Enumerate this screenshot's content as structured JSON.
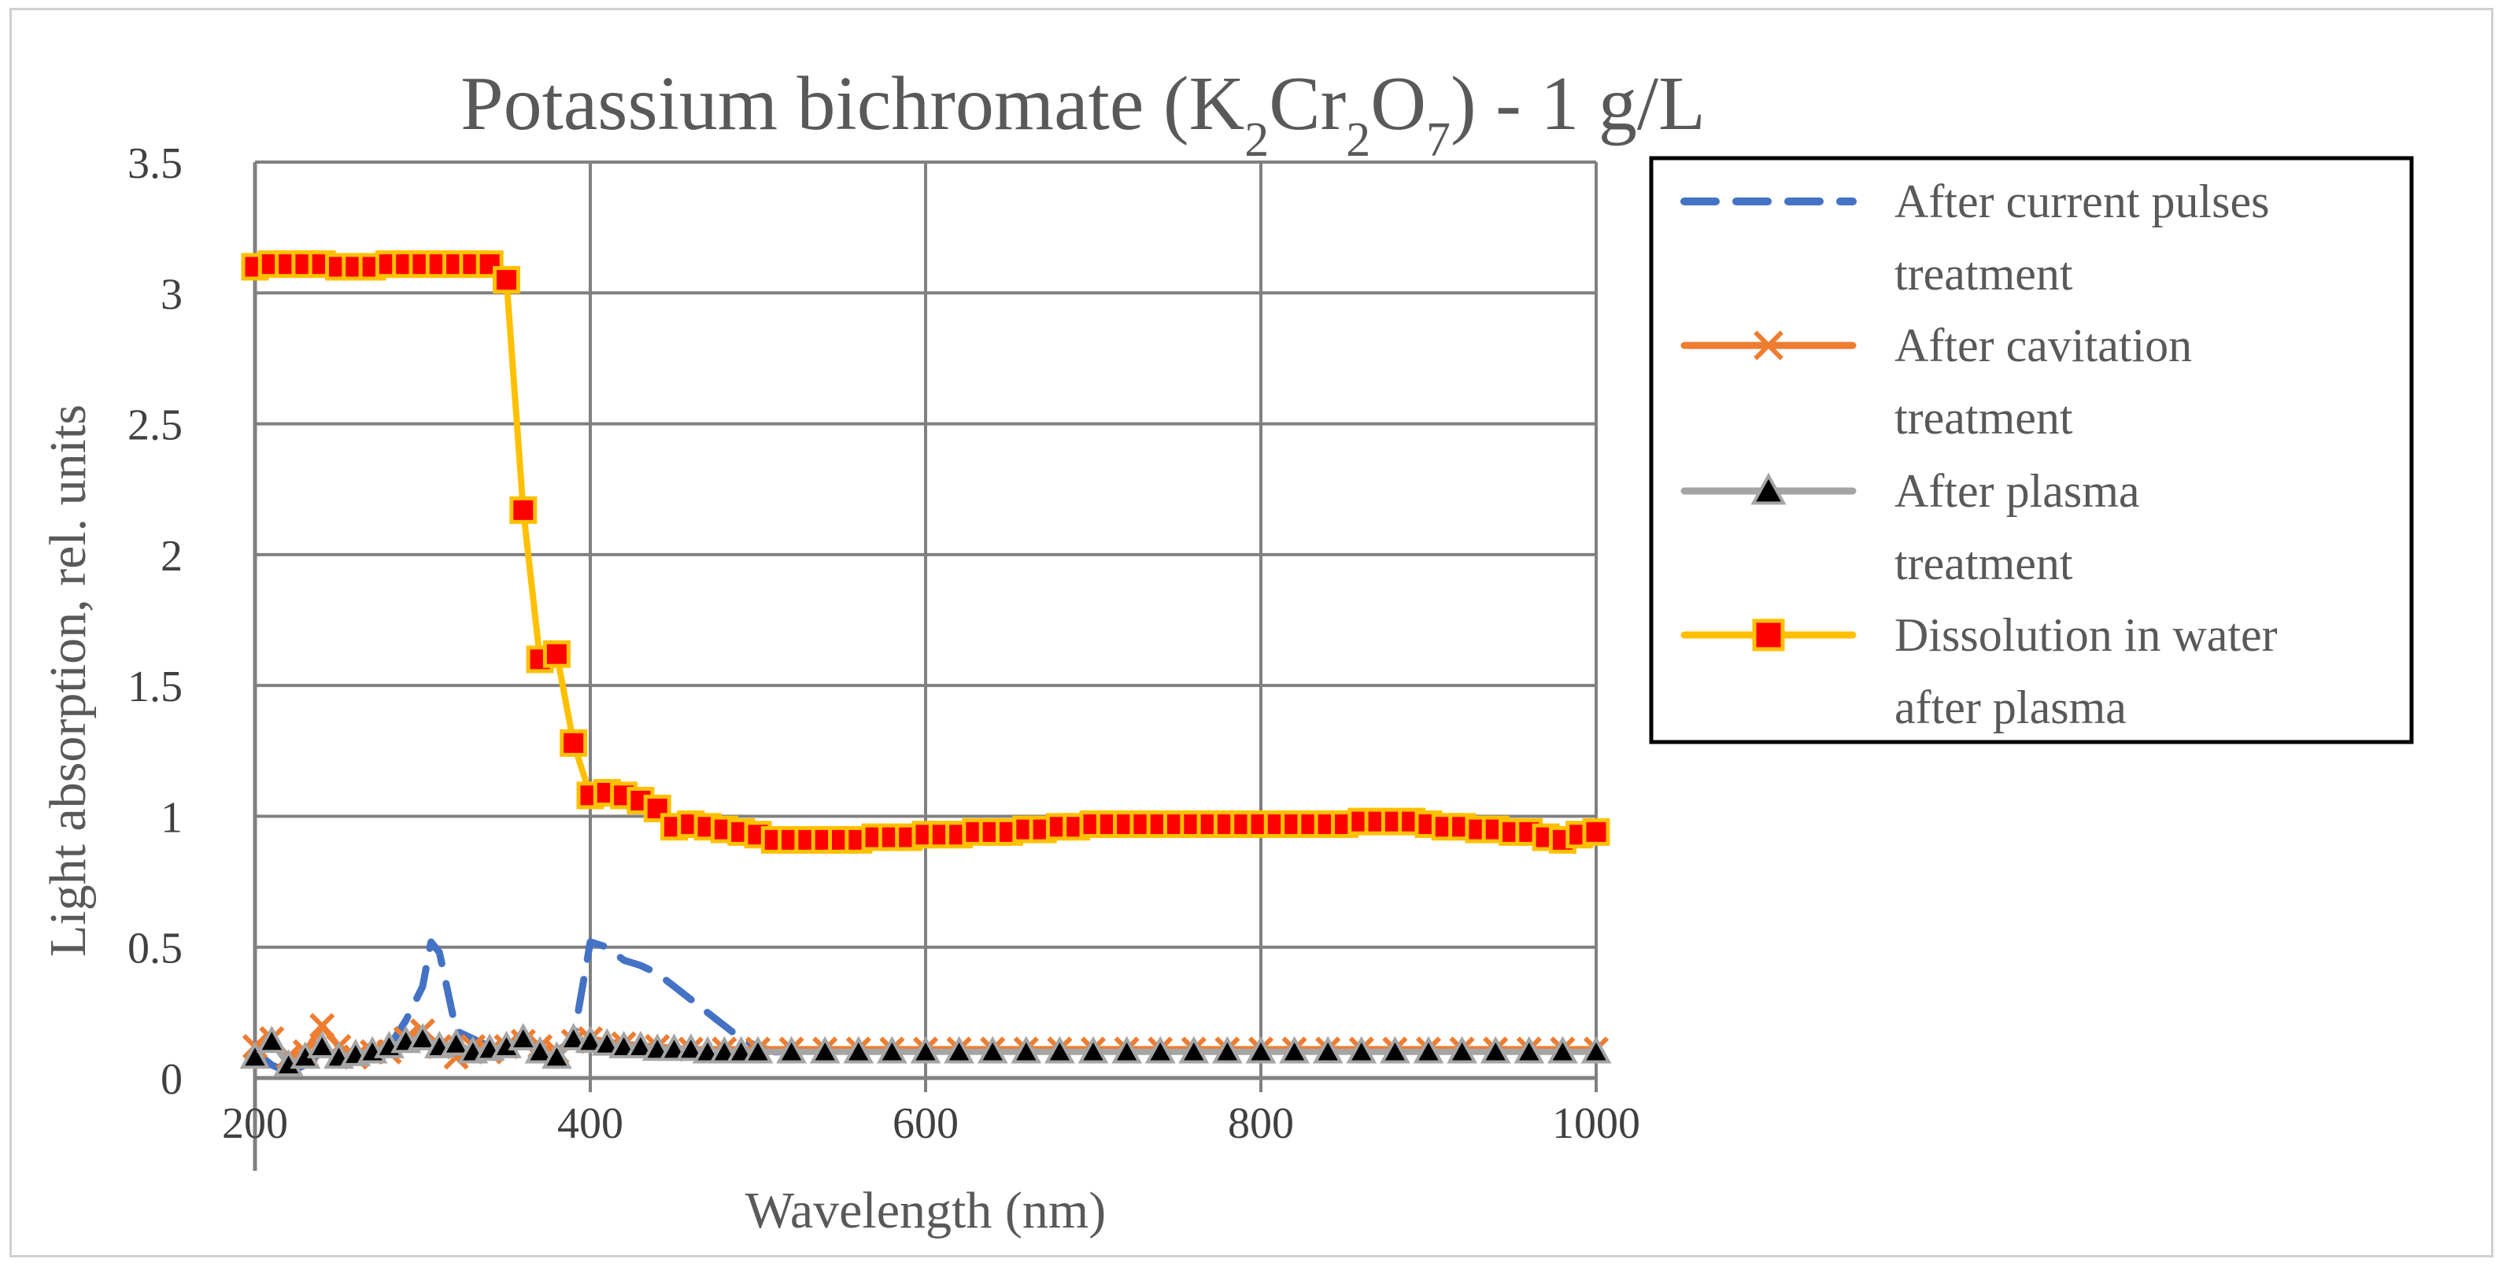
{
  "chart_data": {
    "type": "line",
    "title": {
      "prefix": "Potassium bichromate (K",
      "sub1": "2",
      "mid1": "Cr",
      "sub2": "2",
      "mid2": "O",
      "sub3": "7",
      "suffix": ") - 1 g/L"
    },
    "xlabel": "Wavelength (nm)",
    "ylabel": "Light absorption, rel. units",
    "xlim": [
      200,
      1000
    ],
    "ylim": [
      0,
      3.5
    ],
    "xticks": [
      "200",
      "400",
      "600",
      "800",
      "1000"
    ],
    "yticks": [
      "0",
      "0.5",
      "1",
      "1.5",
      "2",
      "2.5",
      "3",
      "3.5"
    ],
    "grid": true,
    "legend_position": "right",
    "series": [
      {
        "name": "After current pulses treatment",
        "legend_lines": [
          "After current pulses",
          "treatment"
        ],
        "color": "#4472C4",
        "style": "dashed",
        "marker": "none",
        "x": [
          200,
          210,
          220,
          230,
          240,
          250,
          260,
          270,
          280,
          290,
          300,
          305,
          310,
          320,
          330,
          340,
          350,
          360,
          370,
          380,
          390,
          400,
          410,
          420,
          430,
          440,
          450,
          460,
          470,
          480,
          490,
          500,
          510,
          520
        ],
        "y": [
          0.1,
          0.05,
          0.02,
          0.05,
          0.1,
          0.08,
          0.1,
          0.08,
          0.12,
          0.22,
          0.35,
          0.52,
          0.48,
          0.18,
          0.15,
          0.12,
          0.1,
          0.14,
          0.12,
          0.1,
          0.15,
          0.52,
          0.5,
          0.45,
          0.43,
          0.4,
          0.35,
          0.3,
          0.25,
          0.2,
          0.15,
          0.12,
          0.1,
          0.1
        ]
      },
      {
        "name": "After cavitation treatment",
        "legend_lines": [
          "After cavitation",
          "treatment"
        ],
        "color": "#ED7D31",
        "style": "solid",
        "marker": "x",
        "x": [
          200,
          210,
          220,
          230,
          240,
          250,
          260,
          270,
          280,
          290,
          300,
          310,
          320,
          330,
          340,
          350,
          360,
          370,
          380,
          390,
          400,
          420,
          440,
          460,
          480,
          500,
          520,
          540,
          560,
          580,
          600,
          620,
          640,
          660,
          680,
          700,
          720,
          740,
          760,
          780,
          800,
          820,
          840,
          860,
          880,
          900,
          920,
          940,
          960,
          980,
          1000
        ],
        "y": [
          0.12,
          0.15,
          0.08,
          0.1,
          0.2,
          0.12,
          0.08,
          0.1,
          0.1,
          0.15,
          0.18,
          0.12,
          0.08,
          0.12,
          0.1,
          0.12,
          0.14,
          0.12,
          0.1,
          0.14,
          0.15,
          0.13,
          0.12,
          0.11,
          0.11,
          0.11,
          0.11,
          0.11,
          0.11,
          0.11,
          0.11,
          0.11,
          0.11,
          0.11,
          0.11,
          0.11,
          0.11,
          0.11,
          0.11,
          0.11,
          0.11,
          0.11,
          0.11,
          0.11,
          0.11,
          0.11,
          0.11,
          0.11,
          0.11,
          0.11,
          0.11
        ]
      },
      {
        "name": "After plasma treatment",
        "legend_lines": [
          "After plasma",
          "treatment"
        ],
        "color": "#A5A5A5",
        "style": "solid",
        "marker": "triangle",
        "x": [
          200,
          210,
          220,
          230,
          240,
          250,
          260,
          270,
          280,
          290,
          300,
          310,
          320,
          330,
          340,
          350,
          360,
          370,
          380,
          390,
          400,
          410,
          420,
          430,
          440,
          450,
          460,
          470,
          480,
          490,
          500,
          520,
          540,
          560,
          580,
          600,
          620,
          640,
          660,
          680,
          700,
          720,
          740,
          760,
          780,
          800,
          820,
          840,
          860,
          880,
          900,
          920,
          940,
          960,
          980,
          1000
        ],
        "y": [
          0.08,
          0.14,
          0.05,
          0.08,
          0.12,
          0.08,
          0.09,
          0.1,
          0.12,
          0.14,
          0.15,
          0.12,
          0.13,
          0.1,
          0.11,
          0.12,
          0.15,
          0.1,
          0.08,
          0.15,
          0.14,
          0.13,
          0.12,
          0.12,
          0.11,
          0.11,
          0.11,
          0.1,
          0.1,
          0.1,
          0.1,
          0.1,
          0.1,
          0.1,
          0.1,
          0.1,
          0.1,
          0.1,
          0.1,
          0.1,
          0.1,
          0.1,
          0.1,
          0.1,
          0.1,
          0.1,
          0.1,
          0.1,
          0.1,
          0.1,
          0.1,
          0.1,
          0.1,
          0.1,
          0.1,
          0.1
        ]
      },
      {
        "name": "Dissolution in water after plasma",
        "legend_lines": [
          "Dissolution in water",
          "after plasma"
        ],
        "color": "#FFC000",
        "marker_fill": "#FF0000",
        "style": "solid",
        "marker": "square",
        "x": [
          200,
          210,
          220,
          230,
          240,
          250,
          260,
          270,
          280,
          290,
          300,
          310,
          320,
          330,
          340,
          350,
          360,
          370,
          380,
          390,
          400,
          410,
          420,
          430,
          440,
          450,
          460,
          470,
          480,
          490,
          500,
          510,
          520,
          530,
          540,
          550,
          560,
          570,
          580,
          590,
          600,
          610,
          620,
          630,
          640,
          650,
          660,
          670,
          680,
          690,
          700,
          710,
          720,
          730,
          740,
          750,
          760,
          770,
          780,
          790,
          800,
          810,
          820,
          830,
          840,
          850,
          860,
          870,
          880,
          890,
          900,
          910,
          920,
          930,
          940,
          950,
          960,
          970,
          980,
          990,
          1000
        ],
        "y": [
          3.1,
          3.11,
          3.11,
          3.11,
          3.11,
          3.1,
          3.1,
          3.1,
          3.11,
          3.11,
          3.11,
          3.11,
          3.11,
          3.11,
          3.11,
          3.05,
          2.17,
          1.6,
          1.62,
          1.28,
          1.08,
          1.09,
          1.08,
          1.06,
          1.03,
          0.96,
          0.97,
          0.96,
          0.95,
          0.94,
          0.93,
          0.91,
          0.91,
          0.91,
          0.91,
          0.91,
          0.91,
          0.92,
          0.92,
          0.92,
          0.93,
          0.93,
          0.93,
          0.94,
          0.94,
          0.94,
          0.95,
          0.95,
          0.96,
          0.96,
          0.97,
          0.97,
          0.97,
          0.97,
          0.97,
          0.97,
          0.97,
          0.97,
          0.97,
          0.97,
          0.97,
          0.97,
          0.97,
          0.97,
          0.97,
          0.97,
          0.98,
          0.98,
          0.98,
          0.98,
          0.97,
          0.96,
          0.96,
          0.95,
          0.95,
          0.94,
          0.94,
          0.92,
          0.91,
          0.93,
          0.94
        ]
      }
    ]
  }
}
